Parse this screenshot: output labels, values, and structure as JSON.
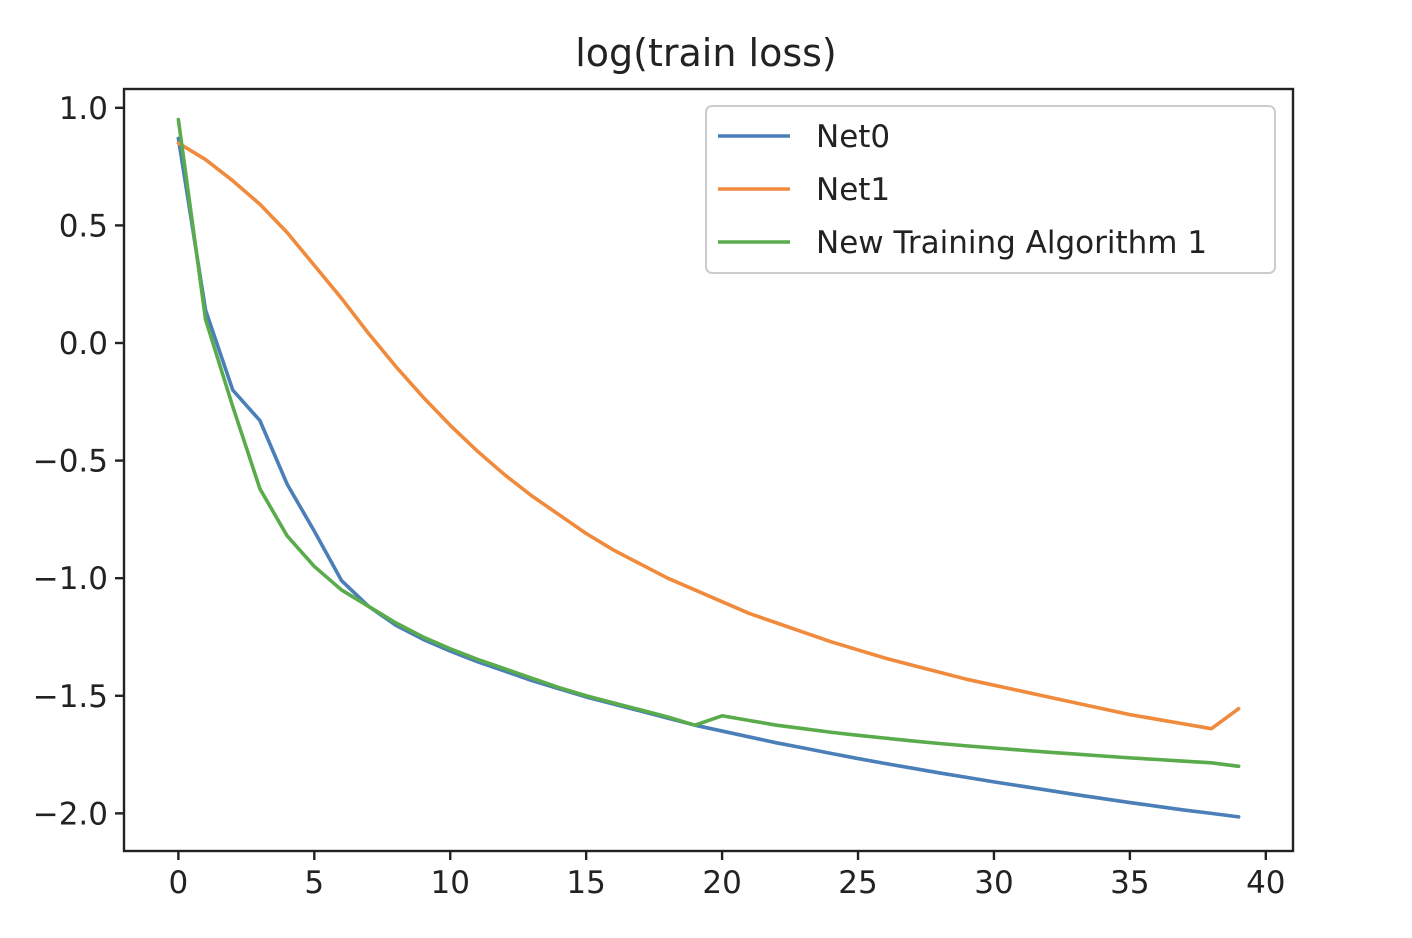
{
  "chart_data": {
    "type": "line",
    "title": "log(train loss)",
    "xlabel": "",
    "ylabel": "",
    "xlim": [
      -2,
      41
    ],
    "ylim": [
      -2.16,
      1.08
    ],
    "xticks": [
      0,
      5,
      10,
      15,
      20,
      25,
      30,
      35,
      40
    ],
    "xtick_labels": [
      "0",
      "5",
      "10",
      "15",
      "20",
      "25",
      "30",
      "35",
      "40"
    ],
    "yticks": [
      1.0,
      0.5,
      0.0,
      -0.5,
      -1.0,
      -1.5,
      -2.0
    ],
    "ytick_labels": [
      "1.0",
      "0.5",
      "0.0",
      "−0.5",
      "−1.0",
      "−1.5",
      "−2.0"
    ],
    "legend_position": "top-right",
    "grid": false,
    "series": [
      {
        "name": "Net0",
        "color": "#4a7fb8",
        "x": [
          0,
          1,
          2,
          3,
          4,
          5,
          6,
          7,
          8,
          9,
          10,
          11,
          12,
          13,
          14,
          15,
          16,
          17,
          18,
          19,
          20,
          21,
          22,
          23,
          24,
          25,
          26,
          27,
          28,
          29,
          30,
          31,
          32,
          33,
          34,
          35,
          36,
          37,
          38,
          39
        ],
        "y": [
          0.87,
          0.14,
          -0.2,
          -0.33,
          -0.6,
          -0.8,
          -1.01,
          -1.12,
          -1.2,
          -1.26,
          -1.31,
          -1.355,
          -1.395,
          -1.435,
          -1.47,
          -1.505,
          -1.535,
          -1.565,
          -1.595,
          -1.625,
          -1.65,
          -1.675,
          -1.7,
          -1.722,
          -1.745,
          -1.767,
          -1.788,
          -1.808,
          -1.828,
          -1.847,
          -1.866,
          -1.884,
          -1.902,
          -1.92,
          -1.937,
          -1.954,
          -1.97,
          -1.986,
          -2.0,
          -2.015
        ]
      },
      {
        "name": "Net1",
        "color": "#f08a3c",
        "x": [
          0,
          1,
          2,
          3,
          4,
          5,
          6,
          7,
          8,
          9,
          10,
          11,
          12,
          13,
          14,
          15,
          16,
          17,
          18,
          19,
          20,
          21,
          22,
          23,
          24,
          25,
          26,
          27,
          28,
          29,
          30,
          31,
          32,
          33,
          34,
          35,
          36,
          37,
          38,
          39
        ],
        "y": [
          0.85,
          0.78,
          0.69,
          0.59,
          0.47,
          0.33,
          0.19,
          0.04,
          -0.1,
          -0.23,
          -0.35,
          -0.46,
          -0.56,
          -0.65,
          -0.73,
          -0.81,
          -0.88,
          -0.94,
          -1.0,
          -1.05,
          -1.1,
          -1.15,
          -1.19,
          -1.23,
          -1.27,
          -1.305,
          -1.34,
          -1.37,
          -1.4,
          -1.43,
          -1.455,
          -1.48,
          -1.505,
          -1.53,
          -1.555,
          -1.58,
          -1.6,
          -1.62,
          -1.64,
          -1.555
        ]
      },
      {
        "name": "New Training Algorithm 1",
        "color": "#5aab4c",
        "x": [
          0,
          1,
          2,
          3,
          4,
          5,
          6,
          7,
          8,
          9,
          10,
          11,
          12,
          13,
          14,
          15,
          16,
          17,
          18,
          19,
          20,
          21,
          22,
          23,
          24,
          25,
          26,
          27,
          28,
          29,
          30,
          31,
          32,
          33,
          34,
          35,
          36,
          37,
          38,
          39
        ],
        "y": [
          0.95,
          0.1,
          -0.27,
          -0.62,
          -0.82,
          -0.95,
          -1.05,
          -1.12,
          -1.19,
          -1.25,
          -1.3,
          -1.345,
          -1.385,
          -1.425,
          -1.465,
          -1.5,
          -1.53,
          -1.56,
          -1.59,
          -1.625,
          -1.585,
          -1.605,
          -1.625,
          -1.64,
          -1.655,
          -1.668,
          -1.68,
          -1.692,
          -1.703,
          -1.713,
          -1.722,
          -1.731,
          -1.74,
          -1.748,
          -1.756,
          -1.764,
          -1.771,
          -1.778,
          -1.785,
          -1.8
        ]
      }
    ]
  }
}
